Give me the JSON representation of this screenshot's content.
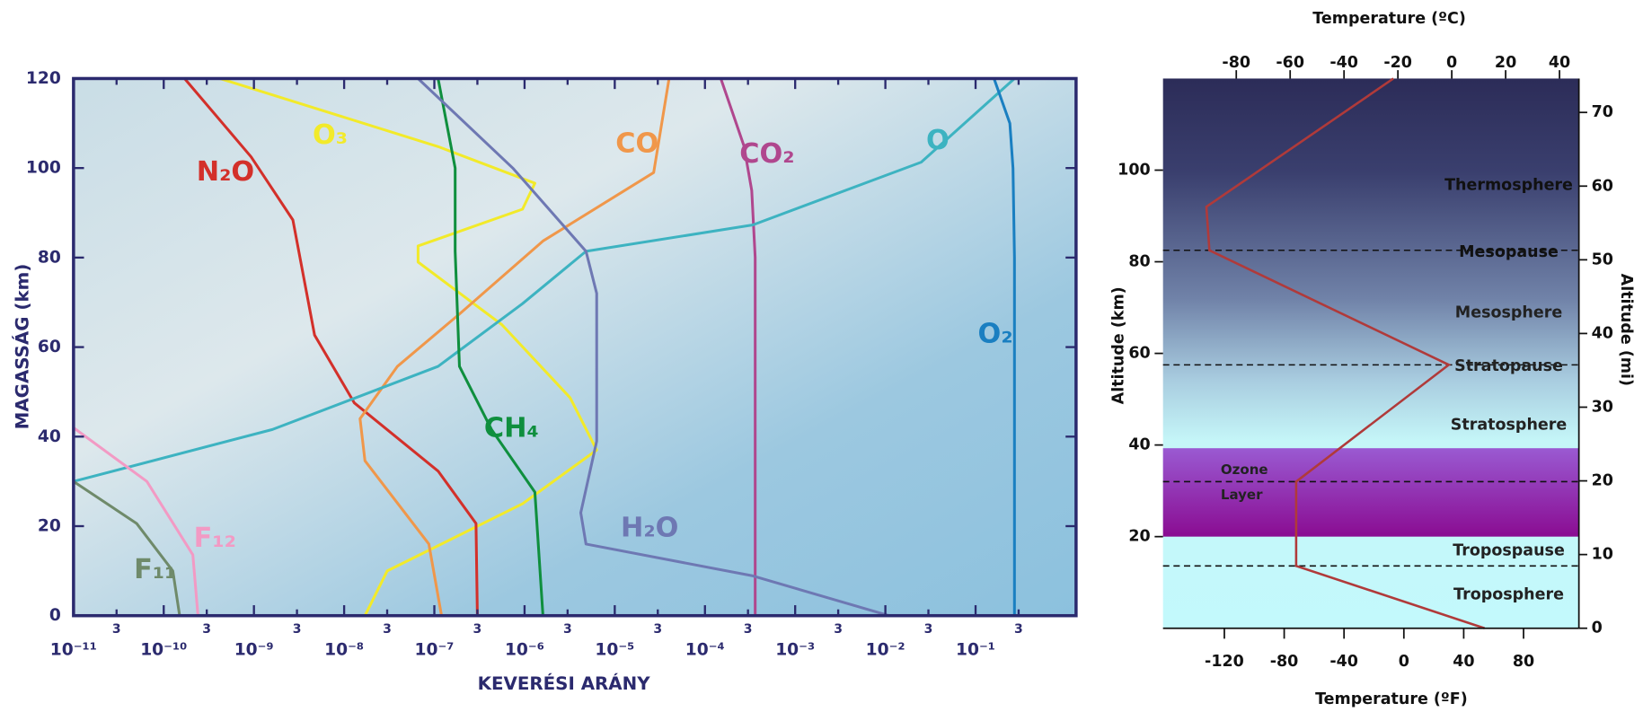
{
  "chart_data": [
    {
      "type": "line",
      "xlog": true,
      "xlabel": "KEVERÉSI ARÁNY",
      "ylabel": "MAGASSÁG (km)",
      "xlim": [
        1e-11,
        1.3
      ],
      "ylim": [
        0,
        120
      ],
      "xticks": [
        {
          "value": 1e-11,
          "label": "10⁻¹¹"
        },
        {
          "value": 3e-11,
          "label": "3"
        },
        {
          "value": 1e-10,
          "label": "10⁻¹⁰"
        },
        {
          "value": 3e-10,
          "label": "3"
        },
        {
          "value": 1e-09,
          "label": "10⁻⁹"
        },
        {
          "value": 3e-09,
          "label": "3"
        },
        {
          "value": 1e-08,
          "label": "10⁻⁸"
        },
        {
          "value": 3e-08,
          "label": "3"
        },
        {
          "value": 1e-07,
          "label": "10⁻⁷"
        },
        {
          "value": 3e-07,
          "label": "3"
        },
        {
          "value": 1e-06,
          "label": "10⁻⁶"
        },
        {
          "value": 3e-06,
          "label": "3"
        },
        {
          "value": 1e-05,
          "label": "10⁻⁵"
        },
        {
          "value": 3e-05,
          "label": "3"
        },
        {
          "value": 0.0001,
          "label": "10⁻⁴"
        },
        {
          "value": 0.0003,
          "label": "3"
        },
        {
          "value": 0.001,
          "label": "10⁻³"
        },
        {
          "value": 0.003,
          "label": "3"
        },
        {
          "value": 0.01,
          "label": "10⁻²"
        },
        {
          "value": 0.03,
          "label": "3"
        },
        {
          "value": 0.1,
          "label": "10⁻¹"
        },
        {
          "value": 0.3,
          "label": "3"
        }
      ],
      "yticks": [
        0,
        20,
        40,
        60,
        80,
        100,
        120
      ],
      "series": [
        {
          "name": "O₃",
          "color": "#f2ea2a",
          "x": [
            1.7e-08,
            3e-08,
            9.5e-07,
            6.3e-06,
            3.2e-06,
            5.6e-07,
            6.6e-08,
            6.6e-08,
            9.5e-07,
            1.3e-06,
            1.1e-07,
            4.2e-10
          ],
          "y": [
            0,
            10,
            25,
            37,
            48.7,
            65,
            79,
            82.6,
            90.8,
            96.6,
            104.8,
            120
          ]
        },
        {
          "name": "N₂O",
          "color": "#d3302a",
          "x": [
            3e-07,
            2.9e-07,
            1.1e-07,
            1.3e-08,
            4.7e-09,
            2.7e-09,
            9.3e-10,
            1.7e-10
          ],
          "y": [
            0,
            20.6,
            32.3,
            47.5,
            62.7,
            88.4,
            102.5,
            120
          ]
        },
        {
          "name": "CO",
          "color": "#f0974a",
          "x": [
            1.2e-07,
            8.7e-08,
            1.7e-08,
            1.5e-08,
            3.9e-08,
            1.9e-07,
            1.6e-06,
            2.7e-05,
            4e-05
          ],
          "y": [
            0,
            16,
            34.6,
            44,
            55.7,
            67.4,
            83.7,
            99,
            120
          ]
        },
        {
          "name": "CO₂",
          "color": "#b0478e",
          "x": [
            0.00036,
            0.00036,
            0.00033,
            0.00027,
            0.00015
          ],
          "y": [
            0,
            80,
            95,
            105,
            120
          ]
        },
        {
          "name": "O",
          "color": "#3db3c1",
          "x": [
            1e-11,
            1.6e-09,
            1.1e-07,
            9.5e-07,
            4.8e-06,
            0.00034,
            0.025,
            0.27
          ],
          "y": [
            30,
            41.6,
            55.7,
            69.7,
            81.4,
            87.3,
            101.3,
            120
          ]
        },
        {
          "name": "O₂",
          "color": "#1a7fc1",
          "x": [
            0.27,
            0.27,
            0.26,
            0.24,
            0.16
          ],
          "y": [
            0,
            80,
            100,
            110,
            120
          ]
        },
        {
          "name": "CH₄",
          "color": "#0f8f3e",
          "x": [
            1.6e-06,
            1.3e-06,
            4.3e-07,
            1.9e-07,
            1.7e-07,
            1.7e-07,
            1.1e-07
          ],
          "y": [
            0,
            27.6,
            41.6,
            55.7,
            81.4,
            100,
            120
          ]
        },
        {
          "name": "H₂O",
          "color": "#6e78b3",
          "x": [
            0.011,
            0.00034,
            4.8e-06,
            4.2e-06,
            6.3e-06,
            6.3e-06,
            4.8e-06,
            7.4e-07,
            6.6e-08
          ],
          "y": [
            0,
            8.9,
            16,
            23,
            39,
            72,
            81.4,
            100,
            120
          ]
        },
        {
          "name": "F₁₂",
          "color": "#f29ac4",
          "x": [
            1e-11,
            6.5e-11,
            2.1e-10,
            2.4e-10
          ],
          "y": [
            42,
            30,
            13.6,
            0
          ]
        },
        {
          "name": "F₁₁",
          "color": "#6f8a6a",
          "x": [
            1e-11,
            5e-11,
            1.26e-10,
            1.5e-10
          ],
          "y": [
            30,
            20.6,
            10,
            0
          ]
        }
      ]
    },
    {
      "type": "profile",
      "xlabel": "Temperature (ºF)",
      "x2label": "Temperature (ºC)",
      "ylabel": "Altitude (km)",
      "y2label": "Altitude (mi)",
      "xlim": [
        -161,
        117
      ],
      "xticks": [
        -120,
        -80,
        -40,
        0,
        40,
        80
      ],
      "x2lim": [
        -107.2,
        47.2
      ],
      "x2ticks": [
        -80,
        -60,
        -40,
        -20,
        0,
        20,
        40
      ],
      "ylim": [
        0,
        120
      ],
      "yticks": [
        20,
        40,
        60,
        80,
        100
      ],
      "y2lim": [
        0,
        74.6
      ],
      "y2ticks": [
        0,
        10,
        20,
        30,
        40,
        50,
        60,
        70
      ],
      "series": [
        {
          "color": "#b03a3a",
          "x": [
            54,
            -72,
            -72,
            30,
            -130,
            -132,
            -7
          ],
          "y": [
            0,
            13.6,
            32,
            57.5,
            82.5,
            92,
            120
          ]
        }
      ],
      "boundaries": [
        13.6,
        32,
        57.5,
        82.5
      ],
      "ozone_layer": [
        20,
        39.3
      ],
      "layers": [
        "Thermosphere",
        "Mesopause",
        "Mesosphere",
        "Stratopause",
        "Stratosphere",
        "Tropospause",
        "Troposphere"
      ],
      "ozone_label": "Ozone Layer"
    }
  ]
}
